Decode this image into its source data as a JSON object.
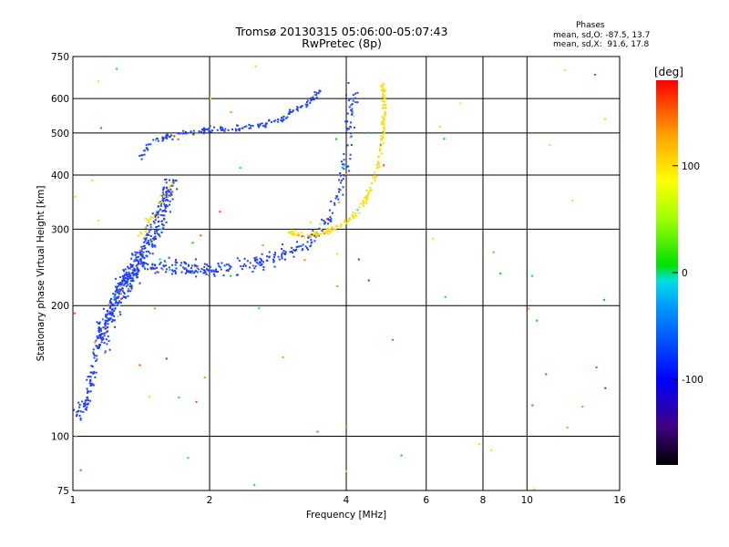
{
  "header": {
    "title": "Tromsø 20130315 05:06:00-05:07:43",
    "subtitle": "RwPretec (8p)",
    "phase_title": "Phases",
    "phase_o": "mean, sd,O: -87.5, 13.7",
    "phase_x": "mean, sd,X:  91.6, 17.8"
  },
  "chart_data": {
    "type": "scatter",
    "title": "Tromsø 20130315 05:06:00-05:07:43",
    "subtitle": "RwPretec (8p)",
    "xlabel": "Frequency [MHz]",
    "ylabel": "Stationary phase Virtual Height [km]",
    "xscale": "log",
    "yscale": "log",
    "xlim": [
      1,
      16
    ],
    "ylim": [
      75,
      750
    ],
    "xticks": [
      1,
      2,
      4,
      6,
      8,
      10,
      16
    ],
    "xticklabels": [
      "1",
      "2",
      "4",
      "6",
      "8",
      "10",
      "16"
    ],
    "yticks": [
      75,
      100,
      200,
      300,
      400,
      500,
      600,
      750
    ],
    "yticklabels": [
      "75",
      "100",
      "200",
      "300",
      "400",
      "500",
      "600",
      "750"
    ],
    "grid": true,
    "colorbar": {
      "label": "[deg]",
      "range": [
        -180,
        180
      ],
      "ticks": [
        100,
        0,
        -100
      ],
      "ticklabels": [
        "100",
        "0",
        "-100"
      ],
      "colors": [
        "#000000",
        "#400080",
        "#0000ff",
        "#00a0ff",
        "#00e0e0",
        "#00e000",
        "#a0ff00",
        "#ffff00",
        "#ffa000",
        "#ff0000"
      ]
    },
    "trace_colors": {
      "o_mode": "#1e40ff",
      "x_mode": "#ffdc00",
      "noise": [
        "#1e40ff",
        "#ffdc00",
        "#00c8ff",
        "#ff4000",
        "#00d000",
        "#a0ff20",
        "#ff8c00"
      ]
    },
    "traces": [
      {
        "name": "",
        "mode": "O",
        "points": [
          [
            1.02,
            112
          ],
          [
            1.05,
            118
          ],
          [
            1.08,
            122
          ],
          [
            1.1,
            138
          ],
          [
            1.13,
            162
          ],
          [
            1.16,
            180
          ],
          [
            1.2,
            195
          ],
          [
            1.25,
            210
          ],
          [
            1.3,
            228
          ],
          [
            1.35,
            238
          ],
          [
            1.4,
            243
          ],
          [
            1.5,
            246
          ],
          [
            1.6,
            247
          ],
          [
            1.7,
            246
          ],
          [
            1.8,
            244
          ],
          [
            1.9,
            242
          ],
          [
            2.0,
            241
          ],
          [
            2.2,
            242
          ],
          [
            2.4,
            246
          ],
          [
            2.6,
            252
          ],
          [
            2.8,
            258
          ],
          [
            3.0,
            266
          ],
          [
            3.2,
            276
          ],
          [
            3.4,
            290
          ],
          [
            3.6,
            310
          ],
          [
            3.8,
            345
          ],
          [
            3.95,
            400
          ],
          [
            4.05,
            470
          ],
          [
            4.1,
            560
          ],
          [
            4.12,
            620
          ]
        ],
        "spread": 0.06,
        "count": 520
      },
      {
        "name": "",
        "mode": "O",
        "points": [
          [
            1.15,
            160
          ],
          [
            1.2,
            185
          ],
          [
            1.25,
            205
          ],
          [
            1.3,
            225
          ],
          [
            1.35,
            240
          ],
          [
            1.4,
            255
          ],
          [
            1.45,
            270
          ],
          [
            1.5,
            290
          ],
          [
            1.55,
            310
          ],
          [
            1.6,
            350
          ],
          [
            1.65,
            390
          ]
        ],
        "spread": 0.09,
        "count": 420
      },
      {
        "name": "",
        "mode": "O",
        "points": [
          [
            1.4,
            440
          ],
          [
            1.5,
            480
          ],
          [
            1.7,
            495
          ],
          [
            1.9,
            505
          ],
          [
            2.1,
            510
          ],
          [
            2.4,
            515
          ],
          [
            2.7,
            525
          ],
          [
            2.9,
            540
          ],
          [
            3.1,
            565
          ],
          [
            3.3,
            590
          ],
          [
            3.5,
            625
          ]
        ],
        "spread": 0.025,
        "count": 170
      },
      {
        "name": "",
        "mode": "X",
        "points": [
          [
            3.0,
            295
          ],
          [
            3.3,
            290
          ],
          [
            3.6,
            296
          ],
          [
            3.9,
            305
          ],
          [
            4.2,
            325
          ],
          [
            4.5,
            365
          ],
          [
            4.7,
            420
          ],
          [
            4.8,
            480
          ],
          [
            4.85,
            540
          ],
          [
            4.85,
            600
          ],
          [
            4.8,
            650
          ]
        ],
        "spread": 0.025,
        "count": 200
      },
      {
        "name": "",
        "mode": "X",
        "points": [
          [
            1.4,
            290
          ],
          [
            1.5,
            320
          ],
          [
            1.6,
            360
          ],
          [
            1.65,
            385
          ]
        ],
        "spread": 0.05,
        "count": 30
      }
    ],
    "noise_count": 70
  }
}
